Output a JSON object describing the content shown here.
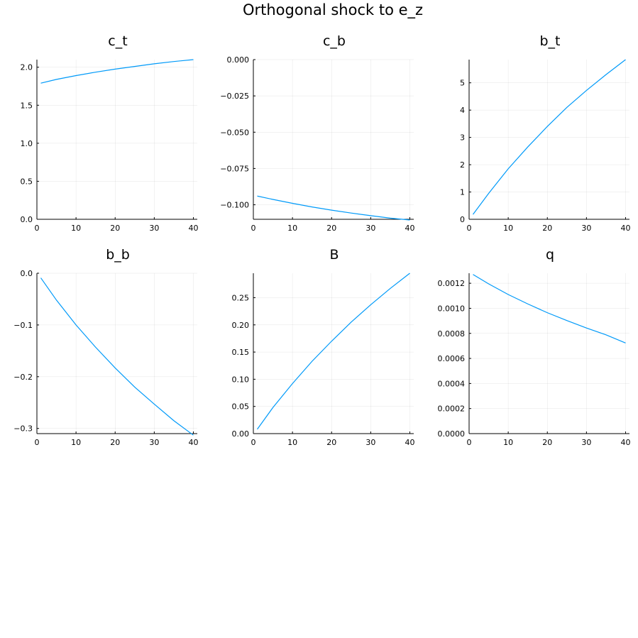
{
  "figure_title": "Orthogonal shock to e_z",
  "line_color": "#009AF9",
  "chart_data": [
    {
      "type": "line",
      "title": "c_t",
      "xlim": [
        0,
        41
      ],
      "ylim": [
        0,
        2.1
      ],
      "xticks": [
        0,
        10,
        20,
        30,
        40
      ],
      "xtick_labels": [
        "0",
        "10",
        "20",
        "30",
        "40"
      ],
      "yticks": [
        0,
        0.5,
        1.0,
        1.5,
        2.0
      ],
      "ytick_labels": [
        "0.0",
        "0.5",
        "1.0",
        "1.5",
        "2.0"
      ],
      "x": [
        1,
        5,
        10,
        15,
        20,
        25,
        30,
        35,
        40
      ],
      "values": [
        1.79,
        1.84,
        1.89,
        1.935,
        1.975,
        2.01,
        2.045,
        2.075,
        2.1
      ]
    },
    {
      "type": "line",
      "title": "c_b",
      "xlim": [
        0,
        41
      ],
      "ylim": [
        -0.11,
        0.0
      ],
      "xticks": [
        0,
        10,
        20,
        30,
        40
      ],
      "xtick_labels": [
        "0",
        "10",
        "20",
        "30",
        "40"
      ],
      "yticks": [
        0,
        -0.025,
        -0.05,
        -0.075,
        -0.1
      ],
      "ytick_labels": [
        "0.000",
        "−0.025",
        "−0.050",
        "−0.075",
        "−0.100"
      ],
      "x": [
        1,
        5,
        10,
        15,
        20,
        25,
        30,
        35,
        40
      ],
      "values": [
        -0.094,
        -0.0963,
        -0.099,
        -0.1015,
        -0.1037,
        -0.1057,
        -0.1075,
        -0.1092,
        -0.1105
      ]
    },
    {
      "type": "line",
      "title": "b_t",
      "xlim": [
        0,
        41
      ],
      "ylim": [
        0,
        5.85
      ],
      "xticks": [
        0,
        10,
        20,
        30,
        40
      ],
      "xtick_labels": [
        "0",
        "10",
        "20",
        "30",
        "40"
      ],
      "yticks": [
        0,
        1,
        2,
        3,
        4,
        5
      ],
      "ytick_labels": [
        "0",
        "1",
        "2",
        "3",
        "4",
        "5"
      ],
      "x": [
        1,
        5,
        10,
        15,
        20,
        25,
        30,
        35,
        40
      ],
      "values": [
        0.18,
        0.95,
        1.85,
        2.65,
        3.4,
        4.1,
        4.72,
        5.3,
        5.85
      ]
    },
    {
      "type": "line",
      "title": "b_b",
      "xlim": [
        0,
        41
      ],
      "ylim": [
        -0.31,
        0.0
      ],
      "xticks": [
        0,
        10,
        20,
        30,
        40
      ],
      "xtick_labels": [
        "0",
        "10",
        "20",
        "30",
        "40"
      ],
      "yticks": [
        0,
        -0.1,
        -0.2,
        -0.3
      ],
      "ytick_labels": [
        "0.0",
        "−0.1",
        "−0.2",
        "−0.3"
      ],
      "x": [
        1,
        5,
        10,
        15,
        20,
        25,
        30,
        35,
        40
      ],
      "values": [
        -0.009,
        -0.052,
        -0.1,
        -0.143,
        -0.183,
        -0.22,
        -0.253,
        -0.285,
        -0.313
      ]
    },
    {
      "type": "line",
      "title": "B",
      "xlim": [
        0,
        41
      ],
      "ylim": [
        0,
        0.295
      ],
      "xticks": [
        0,
        10,
        20,
        30,
        40
      ],
      "xtick_labels": [
        "0",
        "10",
        "20",
        "30",
        "40"
      ],
      "yticks": [
        0,
        0.05,
        0.1,
        0.15,
        0.2,
        0.25
      ],
      "ytick_labels": [
        "0.00",
        "0.05",
        "0.10",
        "0.15",
        "0.20",
        "0.25"
      ],
      "x": [
        1,
        5,
        10,
        15,
        20,
        25,
        30,
        35,
        40
      ],
      "values": [
        0.008,
        0.048,
        0.092,
        0.133,
        0.17,
        0.205,
        0.237,
        0.267,
        0.295
      ]
    },
    {
      "type": "line",
      "title": "q",
      "xlim": [
        0,
        41
      ],
      "ylim": [
        0,
        0.00128
      ],
      "xticks": [
        0,
        10,
        20,
        30,
        40
      ],
      "xtick_labels": [
        "0",
        "10",
        "20",
        "30",
        "40"
      ],
      "yticks": [
        0,
        0.0002,
        0.0004,
        0.0006,
        0.0008,
        0.001,
        0.0012
      ],
      "ytick_labels": [
        "0.0000",
        "0.0002",
        "0.0004",
        "0.0006",
        "0.0008",
        "0.0010",
        "0.0012"
      ],
      "x": [
        1,
        5,
        10,
        15,
        20,
        25,
        30,
        35,
        40
      ],
      "values": [
        0.00127,
        0.001195,
        0.00111,
        0.001035,
        0.000965,
        0.000902,
        0.000843,
        0.000788,
        0.000723
      ]
    }
  ]
}
